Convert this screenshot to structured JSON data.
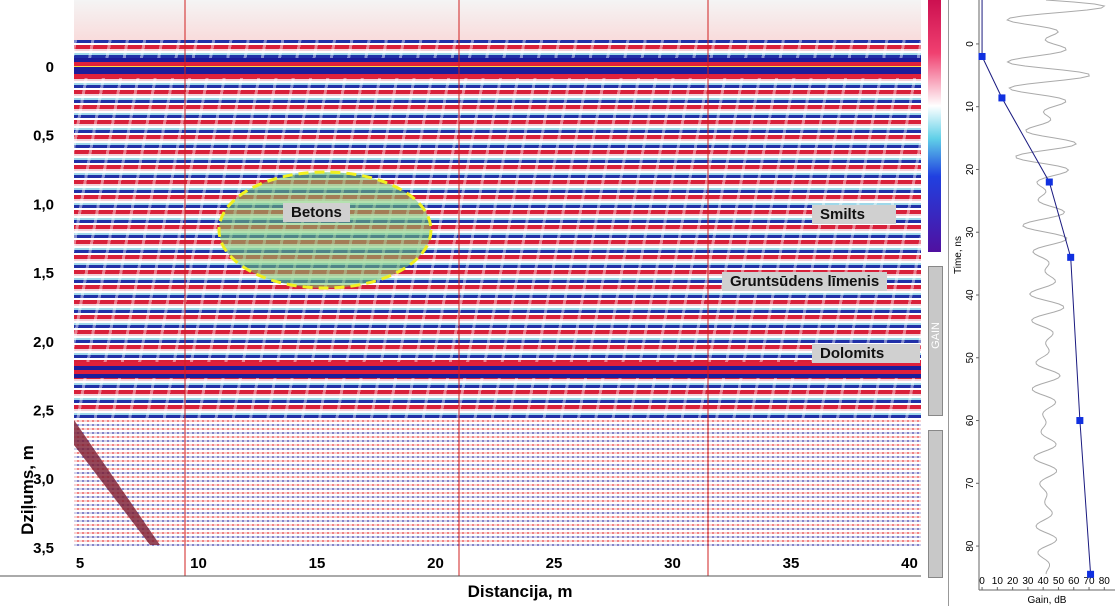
{
  "radargram": {
    "depth_label": "Dziļums, m",
    "distance_label": "Distancija, m",
    "depth_ticks": [
      "0",
      "0,5",
      "1,0",
      "1,5",
      "2,0",
      "2,5",
      "3,0",
      "3,5"
    ],
    "distance_ticks": [
      "5",
      "10",
      "15",
      "20",
      "25",
      "30",
      "35",
      "40"
    ],
    "annotations": [
      "Betons",
      "Smilts",
      "Gruntsūdens līmenis",
      "Dolomits"
    ],
    "gain_slider_label": "GAIN"
  },
  "gain_plot": {
    "x_label": "Gain, dB",
    "y_label": "Time, ns",
    "xlim": [
      -2,
      87
    ],
    "ylim": [
      -7,
      87
    ],
    "xticks": [
      0,
      10,
      20,
      30,
      40,
      50,
      60,
      70,
      80
    ],
    "yticks": [
      0,
      10,
      20,
      30,
      40,
      50,
      60,
      70,
      80
    ],
    "gain": [
      0,
      13,
      44,
      58,
      64,
      71
    ],
    "time": [
      2,
      8.6,
      22,
      34,
      60,
      84.5
    ]
  }
}
